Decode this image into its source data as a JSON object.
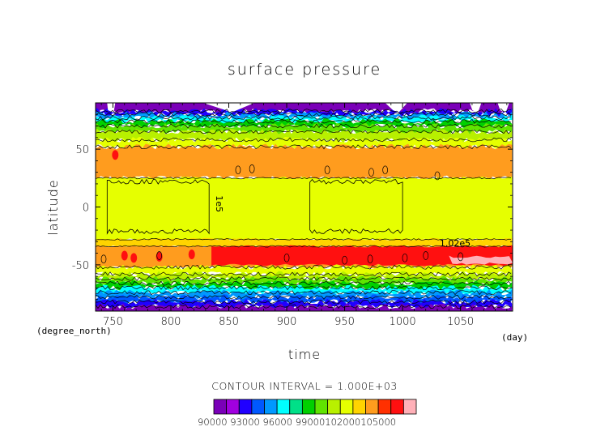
{
  "chart_data": {
    "type": "heatmap",
    "title": "surface pressure",
    "xlabel": "time",
    "ylabel": "latitude",
    "x_unit_label": "(day)",
    "y_unit_label": "(degree_north)",
    "xlim": [
      735,
      1095
    ],
    "ylim": [
      -90,
      90
    ],
    "x_ticks": [
      750,
      800,
      850,
      900,
      950,
      1000,
      1050
    ],
    "y_ticks": [
      50,
      0,
      -50
    ],
    "contour_interval_text": "CONTOUR INTERVAL = 1.000E+03",
    "contour_labels": [
      "1e5",
      "1.02e5"
    ],
    "colorbar": {
      "colors": [
        "#7a00b8",
        "#a000e0",
        "#2000ff",
        "#0058ff",
        "#0098ff",
        "#00ffff",
        "#00e088",
        "#00d000",
        "#60e400",
        "#b8f000",
        "#e6ff00",
        "#ffd400",
        "#ff9c1e",
        "#ff3000",
        "#ff1010",
        "#ffb0b8"
      ],
      "labels": [
        "90000",
        "93000",
        "96000",
        "99000",
        "102000",
        "105000"
      ],
      "label_text": "90000 93000 96000 99000102000105000"
    },
    "bands": [
      {
        "lat_from": 90,
        "lat_to": 83,
        "color": "#7a00b8"
      },
      {
        "lat_from": 83,
        "lat_to": 80,
        "color": "#2000ff"
      },
      {
        "lat_from": 80,
        "lat_to": 77,
        "color": "#0098ff"
      },
      {
        "lat_from": 77,
        "lat_to": 74,
        "color": "#00ffff"
      },
      {
        "lat_from": 74,
        "lat_to": 70,
        "color": "#00d000"
      },
      {
        "lat_from": 70,
        "lat_to": 65,
        "color": "#60e400"
      },
      {
        "lat_from": 65,
        "lat_to": 58,
        "color": "#b8f000"
      },
      {
        "lat_from": 58,
        "lat_to": 52,
        "color": "#e6ff00"
      },
      {
        "lat_from": 52,
        "lat_to": 25,
        "color": "#ff9c1e"
      },
      {
        "lat_from": 25,
        "lat_to": -28,
        "color": "#e6ff00"
      },
      {
        "lat_from": -28,
        "lat_to": -34,
        "color": "#ffd400"
      },
      {
        "lat_from": -34,
        "lat_to": -52,
        "color": "#ff9c1e"
      },
      {
        "lat_from": -52,
        "lat_to": -58,
        "color": "#e6ff00"
      },
      {
        "lat_from": -58,
        "lat_to": -62,
        "color": "#b8f000"
      },
      {
        "lat_from": -62,
        "lat_to": -66,
        "color": "#60e400"
      },
      {
        "lat_from": -66,
        "lat_to": -70,
        "color": "#00d000"
      },
      {
        "lat_from": -70,
        "lat_to": -74,
        "color": "#00ffff"
      },
      {
        "lat_from": -74,
        "lat_to": -78,
        "color": "#0098ff"
      },
      {
        "lat_from": -78,
        "lat_to": -82,
        "color": "#0058ff"
      },
      {
        "lat_from": -82,
        "lat_to": -86,
        "color": "#2000ff"
      },
      {
        "lat_from": -86,
        "lat_to": -90,
        "color": "#7a00b8"
      }
    ],
    "high_pressure_regions": [
      {
        "t_from": 835,
        "t_to": 1095,
        "lat_from": -34,
        "lat_to": -50,
        "color": "#ff1010"
      },
      {
        "t_from": 1040,
        "t_to": 1095,
        "lat_from": -43,
        "lat_to": -49,
        "color": "#ffb0b8"
      }
    ],
    "gridlines": false
  }
}
